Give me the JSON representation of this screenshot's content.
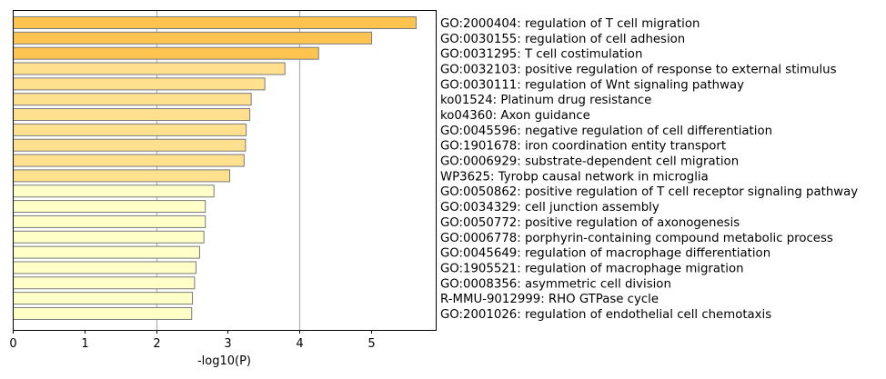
{
  "chart_data": {
    "type": "bar",
    "orientation": "horizontal",
    "xlabel": "-log10(P)",
    "xlim": [
      0,
      5.9
    ],
    "xticks": [
      0,
      1,
      2,
      3,
      4,
      5
    ],
    "grid_lines_at": [
      2,
      4
    ],
    "colors": {
      "tier_high": "#ffc34f",
      "tier_mid": "#ffe08e",
      "tier_low": "#ffffc8",
      "bar_edge": "#7a7a7a",
      "grid": "#b0b0b0"
    },
    "bars": [
      {
        "label": "GO:2000404: regulation of T cell migration",
        "value": 5.62,
        "tier": "high"
      },
      {
        "label": "GO:0030155: regulation of cell adhesion",
        "value": 5.0,
        "tier": "high"
      },
      {
        "label": "GO:0031295: T cell costimulation",
        "value": 4.26,
        "tier": "high"
      },
      {
        "label": "GO:0032103: positive regulation of response to external stimulus",
        "value": 3.79,
        "tier": "mid"
      },
      {
        "label": "GO:0030111: regulation of Wnt signaling pathway",
        "value": 3.51,
        "tier": "mid"
      },
      {
        "label": "ko01524: Platinum drug resistance",
        "value": 3.32,
        "tier": "mid"
      },
      {
        "label": "ko04360: Axon guidance",
        "value": 3.3,
        "tier": "mid"
      },
      {
        "label": "GO:0045596: negative regulation of cell differentiation",
        "value": 3.25,
        "tier": "mid"
      },
      {
        "label": "GO:1901678: iron coordination entity transport",
        "value": 3.24,
        "tier": "mid"
      },
      {
        "label": "GO:0006929: substrate-dependent cell migration",
        "value": 3.22,
        "tier": "mid"
      },
      {
        "label": "WP3625: Tyrobp causal network in microglia",
        "value": 3.02,
        "tier": "mid"
      },
      {
        "label": "GO:0050862: positive regulation of T cell receptor signaling pathway",
        "value": 2.8,
        "tier": "low"
      },
      {
        "label": "GO:0034329: cell junction assembly",
        "value": 2.68,
        "tier": "low"
      },
      {
        "label": "GO:0050772: positive regulation of axonogenesis",
        "value": 2.68,
        "tier": "low"
      },
      {
        "label": "GO:0006778: porphyrin-containing compound metabolic process",
        "value": 2.66,
        "tier": "low"
      },
      {
        "label": "GO:0045649: regulation of macrophage differentiation",
        "value": 2.6,
        "tier": "low"
      },
      {
        "label": "GO:1905521: regulation of macrophage migration",
        "value": 2.55,
        "tier": "low"
      },
      {
        "label": "GO:0008356: asymmetric cell division",
        "value": 2.53,
        "tier": "low"
      },
      {
        "label": "R-MMU-9012999: RHO GTPase cycle",
        "value": 2.5,
        "tier": "low"
      },
      {
        "label": "GO:2001026: regulation of endothelial cell chemotaxis",
        "value": 2.49,
        "tier": "low"
      }
    ]
  }
}
